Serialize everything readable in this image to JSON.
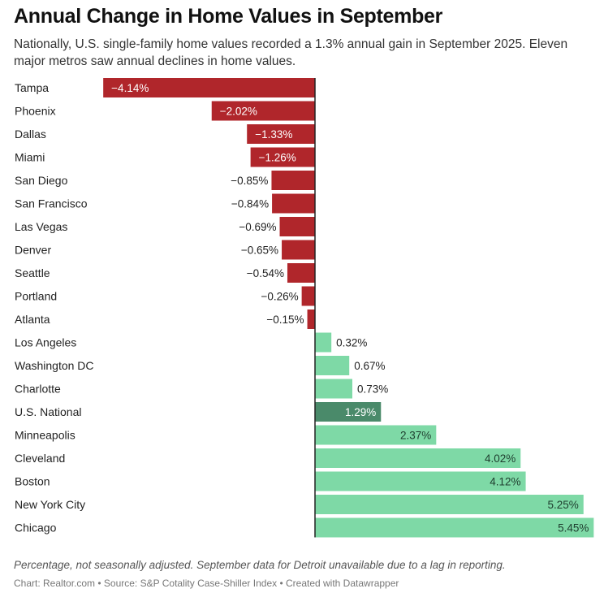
{
  "chart_data": {
    "type": "bar",
    "orientation": "horizontal",
    "title": "Annual Change in Home Values in September",
    "subtitle": "Nationally, U.S. single-family home values recorded a 1.3% annual gain in September 2025. Eleven major metros saw annual declines in home values.",
    "xlabel": "",
    "ylabel": "",
    "unit": "%",
    "xlim": [
      -4.14,
      5.45
    ],
    "grid": false,
    "legend": "none",
    "categories": [
      "Tampa",
      "Phoenix",
      "Dallas",
      "Miami",
      "San Diego",
      "San Francisco",
      "Las Vegas",
      "Denver",
      "Seattle",
      "Portland",
      "Atlanta",
      "Los Angeles",
      "Washington DC",
      "Charlotte",
      "U.S. National",
      "Minneapolis",
      "Cleveland",
      "Boston",
      "New York City",
      "Chicago"
    ],
    "values": [
      -4.14,
      -2.02,
      -1.33,
      -1.26,
      -0.85,
      -0.84,
      -0.69,
      -0.65,
      -0.54,
      -0.26,
      -0.15,
      0.32,
      0.67,
      0.73,
      1.29,
      2.37,
      4.02,
      4.12,
      5.25,
      5.45
    ],
    "value_labels": [
      "−4.14%",
      "−2.02%",
      "−1.33%",
      "−1.26%",
      "−0.85%",
      "−0.84%",
      "−0.69%",
      "−0.65%",
      "−0.54%",
      "−0.26%",
      "−0.15%",
      "0.32%",
      "0.67%",
      "0.73%",
      "1.29%",
      "2.37%",
      "4.02%",
      "4.12%",
      "5.25%",
      "5.45%"
    ],
    "highlight": "U.S. National",
    "notes": "Percentage, not seasonally adjusted. September data for Detroit unavailable due to a lag in reporting.",
    "source": "Chart: Realtor.com • Source: S&P Cotality Case-Shiller Index • Created with Datawrapper"
  },
  "colors": {
    "negative": "#b0262b",
    "positive": "#7ed9a6",
    "highlight": "#4a8a6a",
    "axis": "#222222"
  }
}
